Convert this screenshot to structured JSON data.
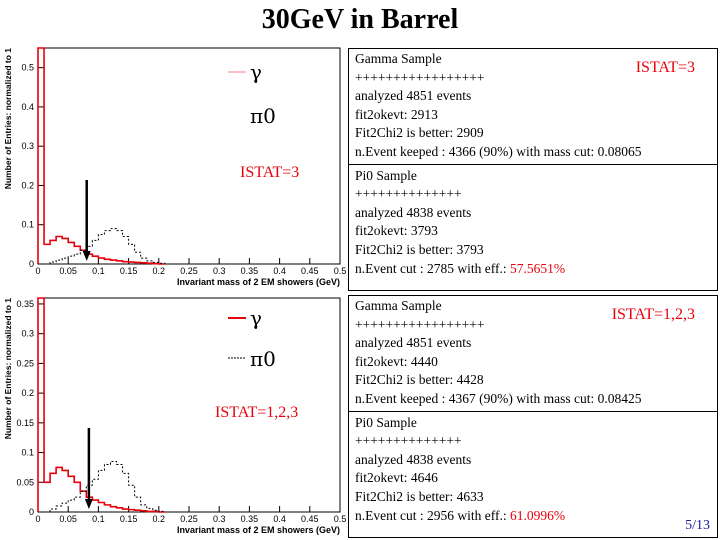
{
  "slide_title": "30GeV in Barrel",
  "page_number": "5/13",
  "plots": [
    {
      "ylabel": "Number of Entries: normalized to 1",
      "xlabel": "Invariant mass of 2 EM showers (GeV)",
      "yticks": [
        "0",
        "0.1",
        "0.2",
        "0.3",
        "0.4",
        "0.5"
      ],
      "xticks": [
        "0",
        "0.05",
        "0.1",
        "0.15",
        "0.2",
        "0.25",
        "0.3",
        "0.35",
        "0.4",
        "0.45",
        "0.5"
      ],
      "legend_gamma": "γ",
      "legend_pi0": "π0",
      "istat_label": "ISTAT=3",
      "ymax": 0.55,
      "gamma_first_bin": 0.55,
      "cut_x": 0.08065
    },
    {
      "ylabel": "Number of Entries: normalized to 1",
      "xlabel": "Invariant mass of 2 EM showers (GeV)",
      "yticks": [
        "0",
        "0.05",
        "0.1",
        "0.15",
        "0.2",
        "0.25",
        "0.3",
        "0.35"
      ],
      "xticks": [
        "0",
        "0.05",
        "0.1",
        "0.15",
        "0.2",
        "0.25",
        "0.3",
        "0.35",
        "0.4",
        "0.45",
        "0.5"
      ],
      "legend_gamma": "γ",
      "legend_pi0": "π0",
      "istat_label": "ISTAT=1,2,3",
      "ymax": 0.36,
      "gamma_first_bin": 0.36,
      "cut_x": 0.08425
    }
  ],
  "chart_data": [
    {
      "type": "line",
      "title": "",
      "xlabel": "Invariant mass of 2 EM showers (GeV)",
      "ylabel": "Number of Entries: normalized to 1",
      "xlim": [
        0,
        0.5
      ],
      "ylim": [
        0,
        0.55
      ],
      "x": [
        0.0,
        0.01,
        0.02,
        0.03,
        0.04,
        0.05,
        0.06,
        0.07,
        0.08,
        0.09,
        0.1,
        0.11,
        0.12,
        0.13,
        0.14,
        0.15,
        0.16,
        0.17,
        0.18,
        0.19,
        0.2
      ],
      "series": [
        {
          "name": "γ",
          "values": [
            0.55,
            0.05,
            0.06,
            0.07,
            0.065,
            0.055,
            0.045,
            0.035,
            0.025,
            0.02,
            0.015,
            0.012,
            0.01,
            0.008,
            0.006,
            0.005,
            0.004,
            0.003,
            0.002,
            0.001,
            0.0
          ]
        },
        {
          "name": "π0",
          "values": [
            0.0,
            0.0,
            0.005,
            0.01,
            0.015,
            0.02,
            0.025,
            0.035,
            0.045,
            0.06,
            0.075,
            0.085,
            0.09,
            0.085,
            0.07,
            0.05,
            0.03,
            0.015,
            0.008,
            0.004,
            0.002
          ]
        }
      ]
    },
    {
      "type": "line",
      "title": "",
      "xlabel": "Invariant mass of 2 EM showers (GeV)",
      "ylabel": "Number of Entries: normalized to 1",
      "xlim": [
        0,
        0.5
      ],
      "ylim": [
        0,
        0.36
      ],
      "x": [
        0.0,
        0.01,
        0.02,
        0.03,
        0.04,
        0.05,
        0.06,
        0.07,
        0.08,
        0.09,
        0.1,
        0.11,
        0.12,
        0.13,
        0.14,
        0.15,
        0.16,
        0.17,
        0.18,
        0.19,
        0.2
      ],
      "series": [
        {
          "name": "γ",
          "values": [
            0.36,
            0.05,
            0.065,
            0.075,
            0.07,
            0.06,
            0.05,
            0.035,
            0.025,
            0.02,
            0.016,
            0.012,
            0.009,
            0.007,
            0.005,
            0.004,
            0.003,
            0.002,
            0.001,
            0.001,
            0.0
          ]
        },
        {
          "name": "π0",
          "values": [
            0.0,
            0.0,
            0.005,
            0.01,
            0.015,
            0.02,
            0.025,
            0.035,
            0.045,
            0.055,
            0.07,
            0.08,
            0.085,
            0.08,
            0.065,
            0.045,
            0.025,
            0.012,
            0.006,
            0.003,
            0.001
          ]
        }
      ]
    }
  ],
  "boxes": [
    {
      "istat": "ISTAT=3",
      "gamma": [
        "Gamma Sample",
        "+++++++++++++++++",
        "analyzed 4851 events",
        "fit2okevt: 2913",
        "Fit2Chi2 is better: 2909",
        "n.Event keeped : 4366 (90%) with mass cut: 0.08065"
      ],
      "pi0": [
        "Pi0 Sample",
        "++++++++++++++",
        "analyzed 4838 events",
        "fit2okevt: 3793",
        "Fit2Chi2 is better: 3793"
      ],
      "pi0_cut_prefix": "n.Event cut : 2785 with eff.: ",
      "pi0_eff": "57.5651%"
    },
    {
      "istat": "ISTAT=1,2,3",
      "gamma": [
        "Gamma Sample",
        "+++++++++++++++++",
        "analyzed 4851 events",
        "fit2okevt: 4440",
        "Fit2Chi2 is better: 4428",
        "n.Event keeped : 4367 (90%) with mass cut: 0.08425"
      ],
      "pi0": [
        "Pi0 Sample",
        "++++++++++++++",
        "analyzed 4838 events",
        "fit2okevt: 4646",
        "Fit2Chi2 is better: 4633"
      ],
      "pi0_cut_prefix": "n.Event cut : 2956 with eff.: ",
      "pi0_eff": "61.0996%"
    }
  ]
}
